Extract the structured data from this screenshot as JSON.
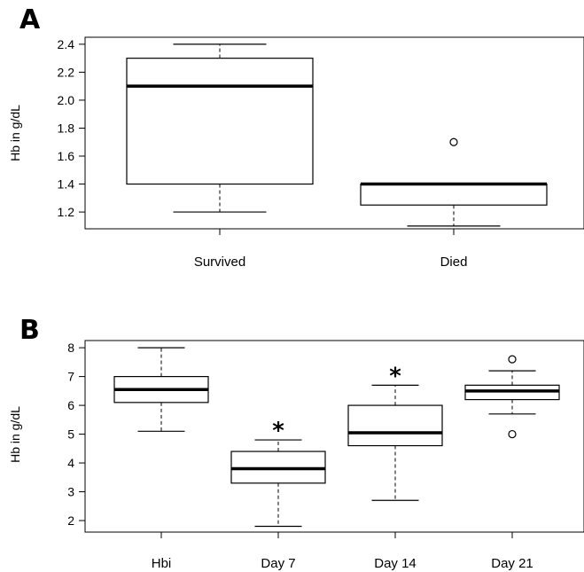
{
  "chart_data": [
    {
      "panel": "A",
      "type": "boxplot",
      "ylabel": "Hb in g/dL",
      "ylim": [
        1.08,
        2.45
      ],
      "yticks": [
        "1.2",
        "1.4",
        "1.6",
        "1.8",
        "2.0",
        "2.2",
        "2.4"
      ],
      "categories": [
        "Survived",
        "Died"
      ],
      "boxes": [
        {
          "label": "Survived",
          "min": 1.2,
          "q1": 1.4,
          "median": 2.1,
          "q3": 2.3,
          "max": 2.4,
          "outliers": [],
          "significant": false
        },
        {
          "label": "Died",
          "min": 1.1,
          "q1": 1.25,
          "median": 1.4,
          "q3": 1.4,
          "max": 1.4,
          "outliers": [
            1.7
          ],
          "significant": false
        }
      ]
    },
    {
      "panel": "B",
      "type": "boxplot",
      "ylabel": "Hb in g/dL",
      "ylim": [
        1.6,
        8.25
      ],
      "yticks": [
        "2",
        "3",
        "4",
        "5",
        "6",
        "7",
        "8"
      ],
      "categories": [
        "Hbi",
        "Day 7",
        "Day 14",
        "Day 21"
      ],
      "significance_marker": "*",
      "boxes": [
        {
          "label": "Hbi",
          "min": 5.1,
          "q1": 6.1,
          "median": 6.55,
          "q3": 7.0,
          "max": 8.0,
          "outliers": [],
          "significant": false
        },
        {
          "label": "Day 7",
          "min": 1.8,
          "q1": 3.3,
          "median": 3.8,
          "q3": 4.4,
          "max": 4.8,
          "outliers": [],
          "significant": true
        },
        {
          "label": "Day 14",
          "min": 2.7,
          "q1": 4.6,
          "median": 5.05,
          "q3": 6.0,
          "max": 6.7,
          "outliers": [],
          "significant": true
        },
        {
          "label": "Day 21",
          "min": 5.7,
          "q1": 6.2,
          "median": 6.5,
          "q3": 6.7,
          "max": 7.2,
          "outliers": [
            5.0,
            7.6
          ],
          "significant": false
        }
      ]
    }
  ]
}
